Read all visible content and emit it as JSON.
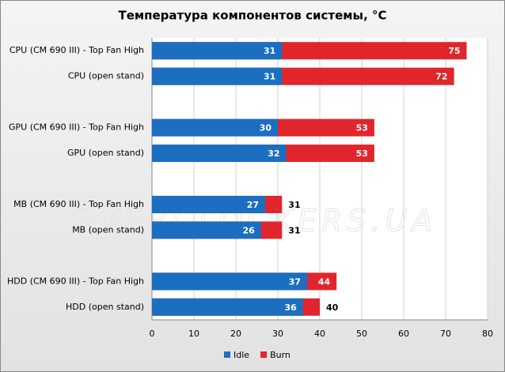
{
  "chart_data": {
    "type": "bar",
    "orientation": "horizontal",
    "title": "Температура компонентов системы, °C",
    "watermark": "OVERCLOCKERS.UA",
    "categories": [
      "CPU (CM 690 III) - Top Fan High",
      "CPU (open stand)",
      "GPU (CM 690 III) - Top Fan High",
      "GPU (open stand)",
      "MB (CM 690 III) - Top Fan High",
      "MB (open stand)",
      "HDD (CM 690 III) - Top Fan High",
      "HDD (open stand)"
    ],
    "series": [
      {
        "name": "Burn",
        "color": "#e0262c",
        "values": [
          75,
          72,
          53,
          53,
          31,
          31,
          44,
          40
        ]
      },
      {
        "name": "Idle",
        "color": "#1c6fc0",
        "values": [
          31,
          31,
          30,
          32,
          27,
          26,
          37,
          36
        ]
      }
    ],
    "xlim": [
      0,
      80
    ],
    "xticks": [
      0,
      10,
      20,
      30,
      40,
      50,
      60,
      70,
      80
    ],
    "grid": true,
    "legend": "bottom"
  }
}
